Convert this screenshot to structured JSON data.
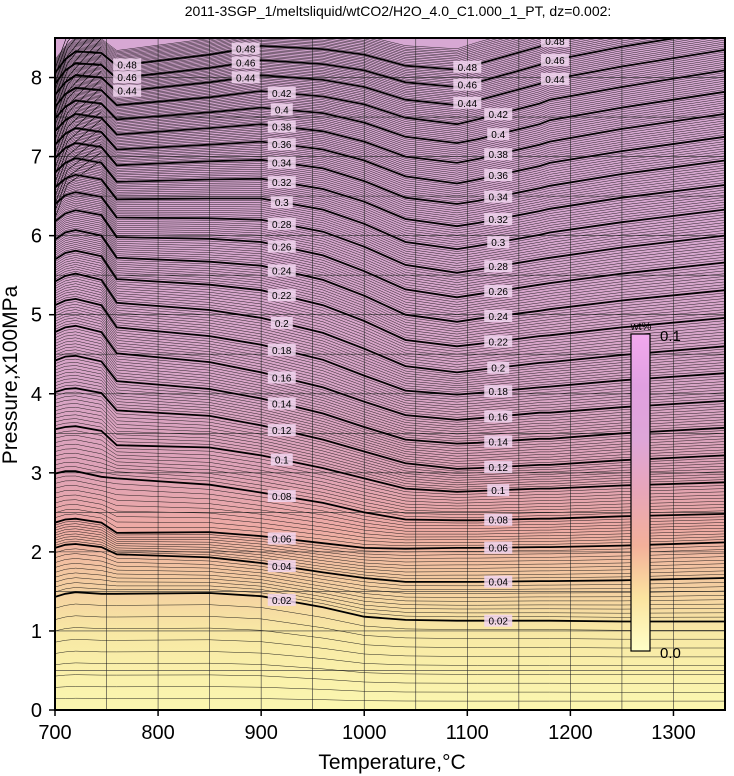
{
  "chart_data": {
    "type": "contour",
    "title": "2011-3SGP_1/meltsliquid/wtCO2/H2O_4.0_C1.000_1_PT, dz=0.002:",
    "xlabel": "Temperature,°C",
    "ylabel": "Pressure,x100MPa",
    "xlim": [
      700,
      1350
    ],
    "ylim": [
      0,
      8.5
    ],
    "x_ticks": [
      "700",
      "800",
      "900",
      "1000",
      "1100",
      "1200",
      "1300"
    ],
    "y_ticks": [
      "0",
      "1",
      "2",
      "3",
      "4",
      "5",
      "6",
      "7",
      "8"
    ],
    "grid": true,
    "colorbar": {
      "unit": "wt%",
      "min_label": "0.0",
      "max_label": "0.1"
    },
    "z_step": 0.002,
    "labeled_contours": [
      0.02,
      0.04,
      0.06,
      0.08,
      0.1,
      0.12,
      0.14,
      0.16,
      0.18,
      0.2,
      0.22,
      0.24,
      0.26,
      0.28,
      0.3,
      0.32,
      0.34,
      0.36,
      0.38,
      0.4,
      0.42,
      0.44,
      0.46,
      0.48
    ],
    "contour_label_texts": [
      "0.02",
      "0.04",
      "0.06",
      "0.08",
      "0.1",
      "0.12",
      "0.14",
      "0.16",
      "0.18",
      "0.2",
      "0.22",
      "0.24",
      "0.26",
      "0.28",
      "0.3",
      "0.32",
      "0.34",
      "0.36",
      "0.38",
      "0.4",
      "0.42",
      "0.44",
      "0.46",
      "0.48"
    ],
    "contour_pressure_at_T": {
      "T": [
        700,
        710,
        720,
        745,
        760,
        850,
        900,
        960,
        1000,
        1040,
        1090,
        1110,
        1170,
        1180,
        1250,
        1350
      ],
      "levels": [
        {
          "z": 0.02,
          "P": [
            1.43,
            1.47,
            1.49,
            1.47,
            1.47,
            1.48,
            1.44,
            1.3,
            1.18,
            1.14,
            1.13,
            1.13,
            1.13,
            1.13,
            1.12,
            1.12
          ]
        },
        {
          "z": 0.04,
          "P": [
            2.05,
            2.09,
            2.1,
            2.06,
            1.97,
            1.93,
            1.86,
            1.74,
            1.67,
            1.62,
            1.62,
            1.62,
            1.63,
            1.63,
            1.64,
            1.67
          ]
        },
        {
          "z": 0.06,
          "P": [
            2.37,
            2.41,
            2.42,
            2.37,
            2.24,
            2.25,
            2.2,
            2.11,
            2.05,
            2.04,
            2.05,
            2.05,
            2.06,
            2.06,
            2.08,
            2.12
          ]
        },
        {
          "z": 0.08,
          "P": [
            2.99,
            3.02,
            3.02,
            2.95,
            2.93,
            2.85,
            2.75,
            2.62,
            2.5,
            2.41,
            2.4,
            2.4,
            2.42,
            2.42,
            2.45,
            2.48
          ]
        },
        {
          "z": 0.1,
          "P": [
            3.55,
            3.58,
            3.59,
            3.53,
            3.35,
            3.32,
            3.22,
            3.06,
            2.93,
            2.8,
            2.76,
            2.77,
            2.8,
            2.8,
            2.84,
            2.88
          ]
        },
        {
          "z": 0.12,
          "P": [
            4.02,
            4.06,
            4.07,
            4.01,
            3.79,
            3.72,
            3.6,
            3.42,
            3.27,
            3.12,
            3.05,
            3.06,
            3.1,
            3.1,
            3.16,
            3.22
          ]
        },
        {
          "z": 0.14,
          "P": [
            4.42,
            4.47,
            4.48,
            4.41,
            4.16,
            4.06,
            3.94,
            3.75,
            3.58,
            3.42,
            3.37,
            3.38,
            3.43,
            3.43,
            3.5,
            3.57
          ]
        },
        {
          "z": 0.16,
          "P": [
            4.78,
            4.84,
            4.86,
            4.78,
            4.51,
            4.4,
            4.27,
            4.08,
            3.9,
            3.73,
            3.67,
            3.69,
            3.76,
            3.76,
            3.83,
            3.91
          ]
        },
        {
          "z": 0.18,
          "P": [
            5.12,
            5.18,
            5.2,
            5.12,
            4.84,
            4.73,
            4.62,
            4.43,
            4.23,
            4.04,
            3.99,
            4.01,
            4.08,
            4.09,
            4.17,
            4.26
          ]
        },
        {
          "z": 0.2,
          "P": [
            5.42,
            5.49,
            5.52,
            5.44,
            5.15,
            5.06,
            4.96,
            4.77,
            4.57,
            4.35,
            4.27,
            4.3,
            4.39,
            4.4,
            4.49,
            4.6
          ]
        },
        {
          "z": 0.22,
          "P": [
            5.7,
            5.78,
            5.81,
            5.74,
            5.45,
            5.38,
            5.31,
            5.12,
            4.92,
            4.68,
            4.6,
            4.63,
            4.73,
            4.74,
            4.84,
            4.96
          ]
        },
        {
          "z": 0.24,
          "P": [
            5.95,
            6.04,
            6.07,
            6.0,
            5.72,
            5.67,
            5.62,
            5.44,
            5.24,
            5.0,
            4.91,
            4.95,
            5.05,
            5.07,
            5.18,
            5.31
          ]
        },
        {
          "z": 0.26,
          "P": [
            6.18,
            6.28,
            6.32,
            6.26,
            5.98,
            5.96,
            5.92,
            5.75,
            5.55,
            5.32,
            5.22,
            5.26,
            5.38,
            5.4,
            5.52,
            5.66
          ]
        },
        {
          "z": 0.28,
          "P": [
            6.4,
            6.51,
            6.55,
            6.49,
            6.23,
            6.22,
            6.2,
            6.05,
            5.86,
            5.63,
            5.53,
            5.57,
            5.7,
            5.72,
            5.85,
            6.0
          ]
        },
        {
          "z": 0.3,
          "P": [
            6.61,
            6.72,
            6.77,
            6.71,
            6.46,
            6.47,
            6.47,
            6.33,
            6.15,
            5.92,
            5.83,
            5.87,
            6.01,
            6.04,
            6.17,
            6.33
          ]
        },
        {
          "z": 0.32,
          "P": [
            6.8,
            6.92,
            6.98,
            6.92,
            6.68,
            6.71,
            6.72,
            6.59,
            6.43,
            6.21,
            6.12,
            6.16,
            6.31,
            6.34,
            6.48,
            6.64
          ]
        },
        {
          "z": 0.34,
          "P": [
            6.98,
            7.11,
            7.17,
            7.12,
            6.89,
            6.94,
            6.96,
            6.85,
            6.69,
            6.48,
            6.4,
            6.44,
            6.6,
            6.63,
            6.78,
            6.95
          ]
        },
        {
          "z": 0.36,
          "P": [
            7.15,
            7.29,
            7.36,
            7.31,
            7.09,
            7.15,
            7.19,
            7.09,
            6.95,
            6.75,
            6.66,
            6.71,
            6.88,
            6.92,
            7.07,
            7.25
          ]
        },
        {
          "z": 0.38,
          "P": [
            7.32,
            7.46,
            7.54,
            7.49,
            7.28,
            7.36,
            7.41,
            7.32,
            7.19,
            7.0,
            6.92,
            6.97,
            7.15,
            7.19,
            7.35,
            7.54
          ]
        },
        {
          "z": 0.4,
          "P": [
            7.48,
            7.63,
            7.71,
            7.67,
            7.47,
            7.56,
            7.62,
            7.55,
            7.43,
            7.25,
            7.17,
            7.22,
            7.41,
            7.46,
            7.62,
            7.82
          ]
        },
        {
          "z": 0.42,
          "P": [
            7.63,
            7.79,
            7.87,
            7.84,
            7.65,
            7.75,
            7.83,
            7.76,
            7.66,
            7.49,
            7.41,
            7.47,
            7.67,
            7.72,
            7.88,
            8.09
          ]
        },
        {
          "z": 0.44,
          "P": [
            7.78,
            7.94,
            8.03,
            8.0,
            7.82,
            7.94,
            8.03,
            7.97,
            7.88,
            7.72,
            7.65,
            7.71,
            7.92,
            7.97,
            8.14,
            8.35
          ]
        },
        {
          "z": 0.46,
          "P": [
            7.92,
            8.09,
            8.18,
            8.16,
            7.99,
            8.12,
            8.22,
            8.17,
            8.09,
            7.94,
            7.88,
            7.94,
            8.16,
            8.21,
            8.39,
            8.6
          ]
        },
        {
          "z": 0.48,
          "P": [
            8.06,
            8.23,
            8.33,
            8.31,
            8.15,
            8.29,
            8.4,
            8.36,
            8.29,
            8.15,
            8.1,
            8.17,
            8.39,
            8.45,
            8.63,
            8.84
          ]
        }
      ]
    },
    "colorbar_stops": [
      "#ffffc8",
      "#fbe4a0",
      "#f3b09a",
      "#e8a6b8",
      "#dea6d8",
      "#e0a0e0",
      "#f2a8ee"
    ],
    "background_bands": [
      {
        "P": 0.0,
        "color": "#fbf7b0"
      },
      {
        "P": 1.0,
        "color": "#f8e8a4"
      },
      {
        "P": 1.7,
        "color": "#f3c8a0"
      },
      {
        "P": 2.3,
        "color": "#eeaaa4"
      },
      {
        "P": 3.0,
        "color": "#dfa2b6"
      },
      {
        "P": 4.0,
        "color": "#d8a4c6"
      },
      {
        "P": 6.0,
        "color": "#d7a6cf"
      },
      {
        "P": 8.5,
        "color": "#d7a8d3"
      }
    ]
  }
}
